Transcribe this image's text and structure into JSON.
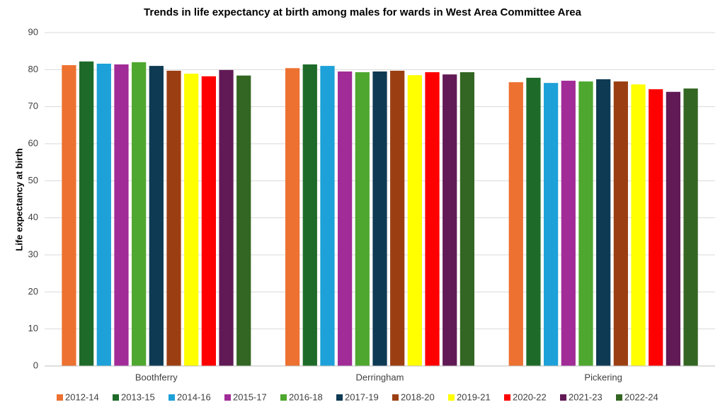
{
  "chart_data": {
    "type": "bar",
    "title": "Trends in life expectancy at birth among males for wards in West Area Committee Area",
    "y_label": "Life expectancy at birth",
    "categories": [
      "Boothferry",
      "Derringham",
      "Pickering"
    ],
    "series": [
      {
        "name": "2012-14",
        "color": "#ed7131",
        "values": [
          81.2,
          80.4,
          76.6
        ]
      },
      {
        "name": "2013-15",
        "color": "#1e6b29",
        "values": [
          82.2,
          81.4,
          77.8
        ]
      },
      {
        "name": "2014-16",
        "color": "#1da1d8",
        "values": [
          81.6,
          81.0,
          76.4
        ]
      },
      {
        "name": "2015-17",
        "color": "#a12c97",
        "values": [
          81.4,
          79.5,
          77.0
        ]
      },
      {
        "name": "2016-18",
        "color": "#4ea72e",
        "values": [
          82.0,
          79.3,
          76.8
        ]
      },
      {
        "name": "2017-19",
        "color": "#0e3a53",
        "values": [
          81.0,
          79.5,
          77.4
        ]
      },
      {
        "name": "2018-20",
        "color": "#9b3f13",
        "values": [
          79.7,
          79.7,
          76.8
        ]
      },
      {
        "name": "2019-21",
        "color": "#ffff00",
        "values": [
          78.9,
          78.5,
          76.0
        ]
      },
      {
        "name": "2020-22",
        "color": "#ff0000",
        "values": [
          78.2,
          79.3,
          74.7
        ]
      },
      {
        "name": "2021-23",
        "color": "#611a56",
        "values": [
          79.9,
          78.7,
          74.0
        ]
      },
      {
        "name": "2022-24",
        "color": "#336622",
        "values": [
          78.4,
          79.3,
          74.9
        ]
      }
    ],
    "ylim": [
      0,
      90
    ],
    "yticks": [
      0,
      10,
      20,
      30,
      40,
      50,
      60,
      70,
      80,
      90
    ],
    "grid": true,
    "legend": "bottom"
  }
}
